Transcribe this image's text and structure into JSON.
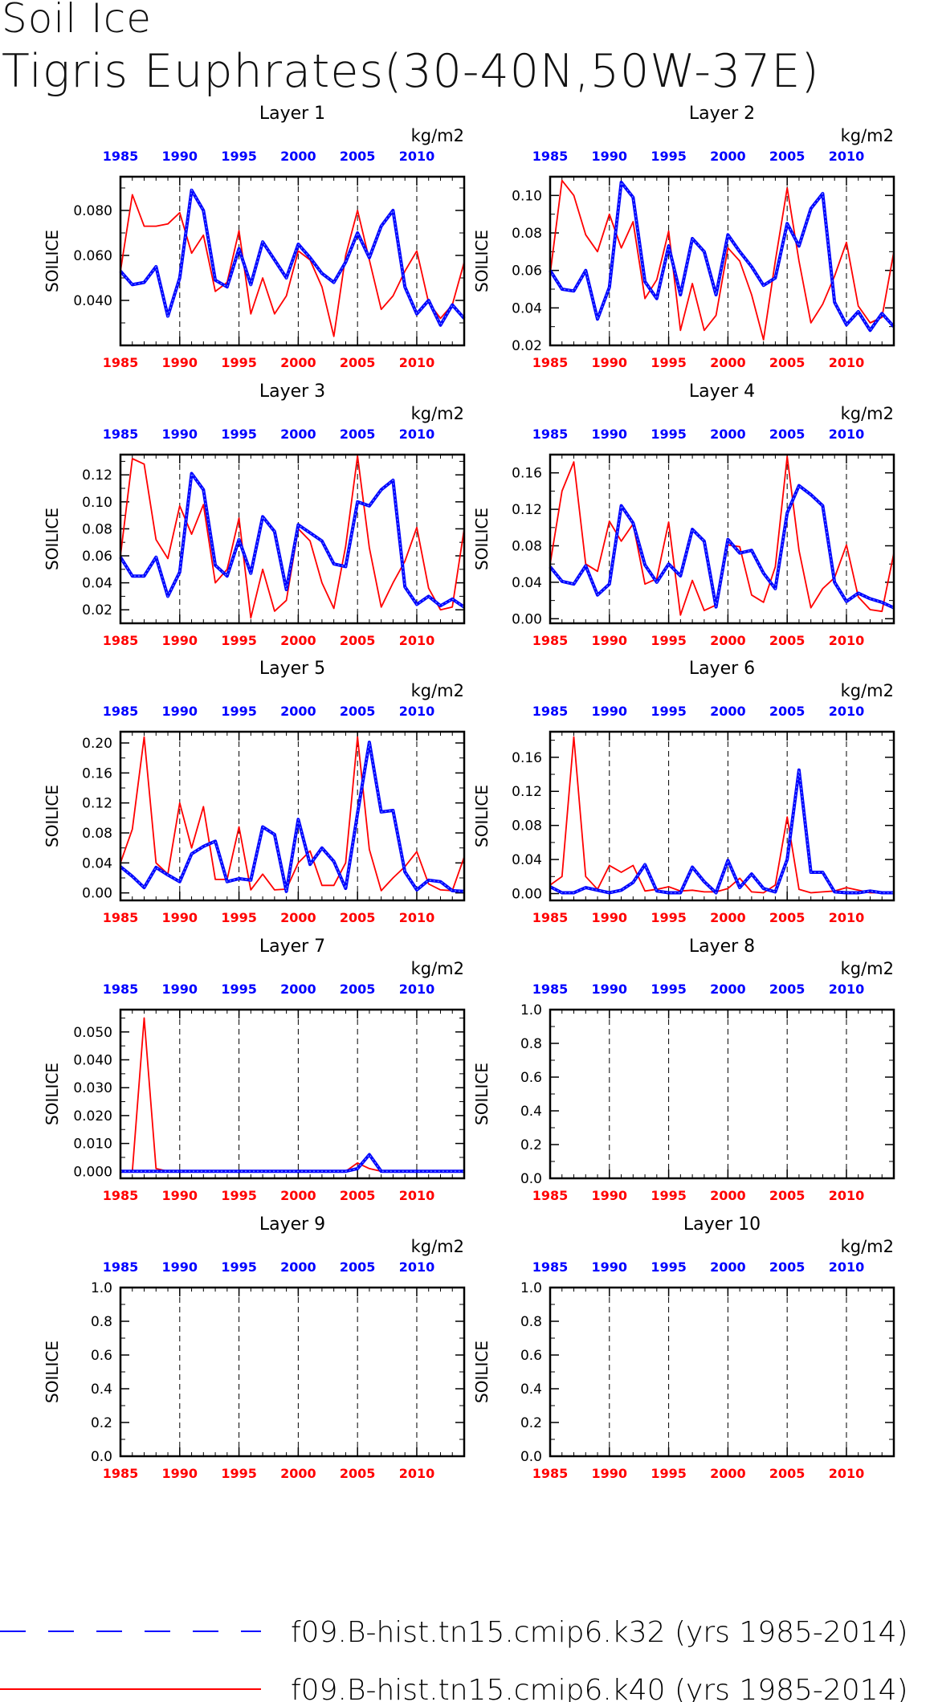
{
  "figure": {
    "title": "Soil Ice",
    "subtitle": "Tigris Euphrates(30-40N,50W-37E)",
    "units": "kg/m2",
    "ylabel": "SOILICE",
    "colors": {
      "k32": "#0000ff",
      "k40": "#ff0000",
      "axis": "#000000"
    }
  },
  "legend": [
    {
      "label": "f09.B-hist.tn15.cmip6.k32 (yrs 1985-2014)",
      "color": "#0000ff",
      "style": "dashed"
    },
    {
      "label": "f09.B-hist.tn15.cmip6.k40 (yrs 1985-2014)",
      "color": "#ff0000",
      "style": "solid"
    }
  ],
  "chart_data": [
    {
      "type": "line",
      "title": "Layer 1",
      "xlim": [
        1985,
        2014
      ],
      "ylim": [
        0.02,
        0.095
      ],
      "yticks": [
        0.04,
        0.06,
        0.08
      ],
      "ytick_labels": [
        "0.040",
        "0.060",
        "0.080"
      ],
      "xticks": [
        1985,
        1990,
        1995,
        2000,
        2005,
        2010
      ],
      "x": [
        1985,
        1986,
        1987,
        1988,
        1989,
        1990,
        1991,
        1992,
        1993,
        1994,
        1995,
        1996,
        1997,
        1998,
        1999,
        2000,
        2001,
        2002,
        2003,
        2004,
        2005,
        2006,
        2007,
        2008,
        2009,
        2010,
        2011,
        2012,
        2013,
        2014
      ],
      "series": [
        {
          "key": "k40",
          "values": [
            0.053,
            0.087,
            0.073,
            0.073,
            0.074,
            0.079,
            0.061,
            0.069,
            0.044,
            0.048,
            0.071,
            0.034,
            0.05,
            0.034,
            0.042,
            0.062,
            0.058,
            0.046,
            0.024,
            0.06,
            0.08,
            0.058,
            0.036,
            0.042,
            0.053,
            0.062,
            0.039,
            0.032,
            0.038,
            0.057
          ]
        },
        {
          "key": "k32",
          "values": [
            0.053,
            0.047,
            0.048,
            0.055,
            0.033,
            0.05,
            0.089,
            0.08,
            0.049,
            0.046,
            0.063,
            0.047,
            0.066,
            0.058,
            0.05,
            0.065,
            0.059,
            0.052,
            0.048,
            0.057,
            0.07,
            0.059,
            0.073,
            0.08,
            0.046,
            0.034,
            0.04,
            0.029,
            0.038,
            0.032
          ]
        }
      ]
    },
    {
      "type": "line",
      "title": "Layer 2",
      "xlim": [
        1985,
        2014
      ],
      "ylim": [
        0.02,
        0.11
      ],
      "yticks": [
        0.02,
        0.04,
        0.06,
        0.08,
        0.1
      ],
      "ytick_labels": [
        "0.02",
        "0.04",
        "0.06",
        "0.08",
        "0.10"
      ],
      "xticks": [
        1985,
        1990,
        1995,
        2000,
        2005,
        2010
      ],
      "x": [
        1985,
        1986,
        1987,
        1988,
        1989,
        1990,
        1991,
        1992,
        1993,
        1994,
        1995,
        1996,
        1997,
        1998,
        1999,
        2000,
        2001,
        2002,
        2003,
        2004,
        2005,
        2006,
        2007,
        2008,
        2009,
        2010,
        2011,
        2012,
        2013,
        2014
      ],
      "series": [
        {
          "key": "k40",
          "values": [
            0.058,
            0.108,
            0.1,
            0.079,
            0.07,
            0.09,
            0.072,
            0.086,
            0.045,
            0.055,
            0.081,
            0.028,
            0.053,
            0.028,
            0.036,
            0.072,
            0.065,
            0.047,
            0.023,
            0.065,
            0.104,
            0.065,
            0.032,
            0.042,
            0.057,
            0.075,
            0.041,
            0.032,
            0.035,
            0.07
          ]
        },
        {
          "key": "k32",
          "values": [
            0.06,
            0.05,
            0.049,
            0.06,
            0.034,
            0.051,
            0.107,
            0.099,
            0.054,
            0.045,
            0.073,
            0.047,
            0.077,
            0.07,
            0.047,
            0.079,
            0.07,
            0.062,
            0.052,
            0.056,
            0.085,
            0.073,
            0.093,
            0.101,
            0.043,
            0.031,
            0.038,
            0.028,
            0.037,
            0.03
          ]
        }
      ]
    },
    {
      "type": "line",
      "title": "Layer 3",
      "xlim": [
        1985,
        2014
      ],
      "ylim": [
        0.01,
        0.135
      ],
      "yticks": [
        0.02,
        0.04,
        0.06,
        0.08,
        0.1,
        0.12
      ],
      "ytick_labels": [
        "0.02",
        "0.04",
        "0.06",
        "0.08",
        "0.10",
        "0.12"
      ],
      "xticks": [
        1985,
        1990,
        1995,
        2000,
        2005,
        2010
      ],
      "x": [
        1985,
        1986,
        1987,
        1988,
        1989,
        1990,
        1991,
        1992,
        1993,
        1994,
        1995,
        1996,
        1997,
        1998,
        1999,
        2000,
        2001,
        2002,
        2003,
        2004,
        2005,
        2006,
        2007,
        2008,
        2009,
        2010,
        2011,
        2012,
        2013,
        2014
      ],
      "series": [
        {
          "key": "k40",
          "values": [
            0.06,
            0.132,
            0.128,
            0.072,
            0.058,
            0.097,
            0.076,
            0.098,
            0.04,
            0.05,
            0.088,
            0.014,
            0.05,
            0.019,
            0.027,
            0.08,
            0.071,
            0.04,
            0.021,
            0.067,
            0.134,
            0.066,
            0.022,
            0.04,
            0.056,
            0.081,
            0.036,
            0.02,
            0.022,
            0.08
          ]
        },
        {
          "key": "k32",
          "values": [
            0.059,
            0.045,
            0.045,
            0.059,
            0.03,
            0.048,
            0.121,
            0.109,
            0.053,
            0.045,
            0.072,
            0.047,
            0.089,
            0.078,
            0.035,
            0.083,
            0.077,
            0.071,
            0.054,
            0.052,
            0.1,
            0.097,
            0.109,
            0.116,
            0.037,
            0.024,
            0.03,
            0.023,
            0.028,
            0.022
          ]
        }
      ]
    },
    {
      "type": "line",
      "title": "Layer 4",
      "xlim": [
        1985,
        2014
      ],
      "ylim": [
        -0.005,
        0.18
      ],
      "yticks": [
        0.0,
        0.04,
        0.08,
        0.12,
        0.16
      ],
      "ytick_labels": [
        "0.00",
        "0.04",
        "0.08",
        "0.12",
        "0.16"
      ],
      "xticks": [
        1985,
        1990,
        1995,
        2000,
        2005,
        2010
      ],
      "x": [
        1985,
        1986,
        1987,
        1988,
        1989,
        1990,
        1991,
        1992,
        1993,
        1994,
        1995,
        1996,
        1997,
        1998,
        1999,
        2000,
        2001,
        2002,
        2003,
        2004,
        2005,
        2006,
        2007,
        2008,
        2009,
        2010,
        2011,
        2012,
        2013,
        2014
      ],
      "series": [
        {
          "key": "k40",
          "values": [
            0.06,
            0.14,
            0.172,
            0.06,
            0.052,
            0.107,
            0.085,
            0.104,
            0.038,
            0.044,
            0.106,
            0.004,
            0.042,
            0.009,
            0.015,
            0.081,
            0.079,
            0.026,
            0.018,
            0.057,
            0.178,
            0.075,
            0.012,
            0.033,
            0.045,
            0.081,
            0.024,
            0.01,
            0.008,
            0.072
          ]
        },
        {
          "key": "k32",
          "values": [
            0.057,
            0.041,
            0.038,
            0.058,
            0.026,
            0.038,
            0.124,
            0.105,
            0.059,
            0.04,
            0.06,
            0.047,
            0.098,
            0.085,
            0.013,
            0.087,
            0.072,
            0.075,
            0.05,
            0.033,
            0.116,
            0.146,
            0.136,
            0.124,
            0.04,
            0.019,
            0.028,
            0.022,
            0.018,
            0.012
          ]
        }
      ]
    },
    {
      "type": "line",
      "title": "Layer 5",
      "xlim": [
        1985,
        2014
      ],
      "ylim": [
        -0.01,
        0.215
      ],
      "yticks": [
        0.0,
        0.04,
        0.08,
        0.12,
        0.16,
        0.2
      ],
      "ytick_labels": [
        "0.00",
        "0.04",
        "0.08",
        "0.12",
        "0.16",
        "0.20"
      ],
      "xticks": [
        1985,
        1990,
        1995,
        2000,
        2005,
        2010
      ],
      "x": [
        1985,
        1986,
        1987,
        1988,
        1989,
        1990,
        1991,
        1992,
        1993,
        1994,
        1995,
        1996,
        1997,
        1998,
        1999,
        2000,
        2001,
        2002,
        2003,
        2004,
        2005,
        2006,
        2007,
        2008,
        2009,
        2010,
        2011,
        2012,
        2013,
        2014
      ],
      "series": [
        {
          "key": "k40",
          "values": [
            0.04,
            0.085,
            0.208,
            0.04,
            0.025,
            0.12,
            0.06,
            0.115,
            0.018,
            0.018,
            0.088,
            0.004,
            0.025,
            0.004,
            0.005,
            0.04,
            0.056,
            0.01,
            0.01,
            0.04,
            0.208,
            0.058,
            0.003,
            0.02,
            0.035,
            0.055,
            0.012,
            0.004,
            0.003,
            0.048
          ]
        },
        {
          "key": "k32",
          "values": [
            0.035,
            0.022,
            0.007,
            0.034,
            0.024,
            0.015,
            0.052,
            0.062,
            0.069,
            0.015,
            0.019,
            0.017,
            0.088,
            0.078,
            0.002,
            0.098,
            0.038,
            0.06,
            0.042,
            0.006,
            0.106,
            0.201,
            0.108,
            0.11,
            0.028,
            0.004,
            0.017,
            0.015,
            0.003,
            0.002
          ]
        }
      ]
    },
    {
      "type": "line",
      "title": "Layer 6",
      "xlim": [
        1985,
        2014
      ],
      "ylim": [
        -0.008,
        0.19
      ],
      "yticks": [
        0.0,
        0.04,
        0.08,
        0.12,
        0.16
      ],
      "ytick_labels": [
        "0.00",
        "0.04",
        "0.08",
        "0.12",
        "0.16"
      ],
      "xticks": [
        1985,
        1990,
        1995,
        2000,
        2005,
        2010
      ],
      "x": [
        1985,
        1986,
        1987,
        1988,
        1989,
        1990,
        1991,
        1992,
        1993,
        1994,
        1995,
        1996,
        1997,
        1998,
        1999,
        2000,
        2001,
        2002,
        2003,
        2004,
        2005,
        2006,
        2007,
        2008,
        2009,
        2010,
        2011,
        2012,
        2013,
        2014
      ],
      "series": [
        {
          "key": "k40",
          "values": [
            0.01,
            0.02,
            0.184,
            0.02,
            0.005,
            0.033,
            0.025,
            0.033,
            0.003,
            0.005,
            0.008,
            0.003,
            0.004,
            0.002,
            0.002,
            0.006,
            0.018,
            0.002,
            0.001,
            0.01,
            0.09,
            0.005,
            0.001,
            0.002,
            0.003,
            0.007,
            0.004,
            0.001,
            0.001,
            0.002
          ]
        },
        {
          "key": "k32",
          "values": [
            0.008,
            0.001,
            0.001,
            0.007,
            0.004,
            0.001,
            0.004,
            0.013,
            0.034,
            0.003,
            0.001,
            0.001,
            0.031,
            0.014,
            0.001,
            0.039,
            0.007,
            0.023,
            0.006,
            0.002,
            0.04,
            0.145,
            0.025,
            0.025,
            0.002,
            0.001,
            0.001,
            0.003,
            0.001,
            0.001
          ]
        }
      ]
    },
    {
      "type": "line",
      "title": "Layer 7",
      "xlim": [
        1985,
        2014
      ],
      "ylim": [
        -0.0025,
        0.058
      ],
      "yticks": [
        0.0,
        0.01,
        0.02,
        0.03,
        0.04,
        0.05
      ],
      "ytick_labels": [
        "0.000",
        "0.010",
        "0.020",
        "0.030",
        "0.040",
        "0.050"
      ],
      "xticks": [
        1985,
        1990,
        1995,
        2000,
        2005,
        2010
      ],
      "x": [
        1985,
        1986,
        1987,
        1988,
        1989,
        1990,
        1991,
        1992,
        1993,
        1994,
        1995,
        1996,
        1997,
        1998,
        1999,
        2000,
        2001,
        2002,
        2003,
        2004,
        2005,
        2006,
        2007,
        2008,
        2009,
        2010,
        2011,
        2012,
        2013,
        2014
      ],
      "series": [
        {
          "key": "k40",
          "values": [
            0,
            0,
            0.055,
            0.001,
            0,
            0,
            0,
            0,
            0,
            0,
            0,
            0,
            0,
            0,
            0,
            0,
            0,
            0,
            0,
            0,
            0.003,
            0.001,
            0,
            0,
            0,
            0,
            0,
            0,
            0,
            0
          ]
        },
        {
          "key": "k32",
          "values": [
            0,
            0,
            0,
            0,
            0,
            0,
            0,
            0,
            0,
            0,
            0,
            0,
            0,
            0,
            0,
            0,
            0,
            0,
            0,
            0,
            0.001,
            0.006,
            0,
            0,
            0,
            0,
            0,
            0,
            0,
            0
          ]
        }
      ]
    },
    {
      "type": "line",
      "title": "Layer 8",
      "xlim": [
        1985,
        2014
      ],
      "ylim": [
        0.0,
        1.0
      ],
      "yticks": [
        0.0,
        0.2,
        0.4,
        0.6,
        0.8,
        1.0
      ],
      "ytick_labels": [
        "0.0",
        "0.2",
        "0.4",
        "0.6",
        "0.8",
        "1.0"
      ],
      "xticks": [
        1985,
        1990,
        1995,
        2000,
        2005,
        2010
      ],
      "x": [],
      "series": []
    },
    {
      "type": "line",
      "title": "Layer 9",
      "xlim": [
        1985,
        2014
      ],
      "ylim": [
        0.0,
        1.0
      ],
      "yticks": [
        0.0,
        0.2,
        0.4,
        0.6,
        0.8,
        1.0
      ],
      "ytick_labels": [
        "0.0",
        "0.2",
        "0.4",
        "0.6",
        "0.8",
        "1.0"
      ],
      "xticks": [
        1985,
        1990,
        1995,
        2000,
        2005,
        2010
      ],
      "x": [],
      "series": []
    },
    {
      "type": "line",
      "title": "Layer 10",
      "xlim": [
        1985,
        2014
      ],
      "ylim": [
        0.0,
        1.0
      ],
      "yticks": [
        0.0,
        0.2,
        0.4,
        0.6,
        0.8,
        1.0
      ],
      "ytick_labels": [
        "0.0",
        "0.2",
        "0.4",
        "0.6",
        "0.8",
        "1.0"
      ],
      "xticks": [
        1985,
        1990,
        1995,
        2000,
        2005,
        2010
      ],
      "x": [],
      "series": []
    }
  ]
}
